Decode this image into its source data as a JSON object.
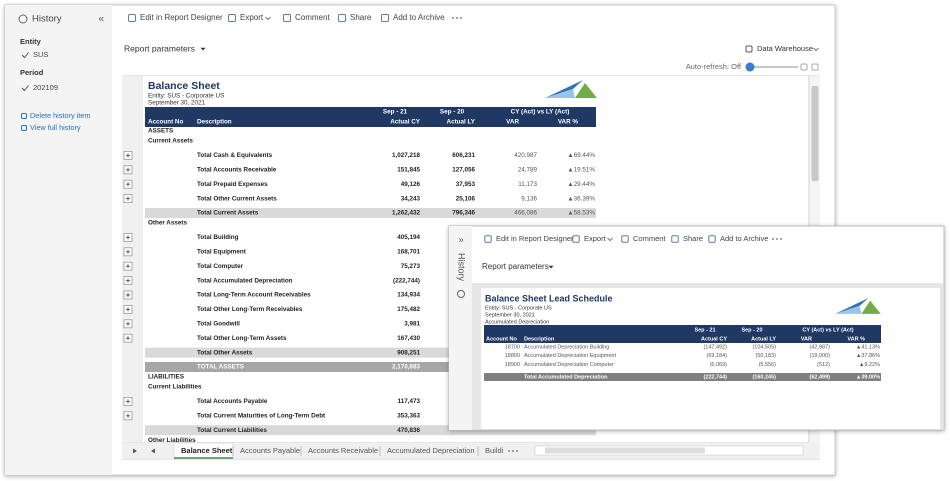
{
  "sidebar": {
    "title": "History",
    "collapse": "«",
    "entity_label": "Entity",
    "entity": "SUS",
    "period_label": "Period",
    "period": "202109",
    "actions": [
      "Delete history item",
      "View full history"
    ]
  },
  "toolbar": [
    "Edit in Report Designer",
    "Export",
    "Comment",
    "Share",
    "Add to Archive"
  ],
  "report_parameters": "Report parameters",
  "data_source": "Data Warehouse",
  "auto_refresh": "Auto-refresh: Off",
  "report": {
    "title": "Balance Sheet",
    "entity": "Entity: SUS - Corporate US",
    "date": "September 30, 2021",
    "column_groups": [
      "Sep - 21",
      "Sep - 20",
      "CY (Act) vs LY (Act)"
    ],
    "columns": [
      "Account No",
      "Description",
      "Actual CY",
      "Actual LY",
      "VAR",
      "VAR %"
    ],
    "rows": [
      {
        "heading": "ASSETS"
      },
      {
        "subheading": "Current Assets"
      },
      {
        "line": "Total Cash & Equivalents",
        "cells": [
          "1,027,218",
          "606,231",
          "420,987",
          "▲69.44%"
        ]
      },
      {
        "line": "Total Accounts Receivable",
        "cells": [
          "151,845",
          "127,056",
          "24,789",
          "▲19.51%"
        ]
      },
      {
        "line": "Total Prepaid Expenses",
        "cells": [
          "49,126",
          "37,953",
          "11,173",
          "▲29.44%"
        ]
      },
      {
        "line": "Total Other Current Assets",
        "cells": [
          "34,243",
          "25,106",
          "9,136",
          "▲36.39%"
        ]
      },
      {
        "subtotal": "Total Current Assets",
        "cells": [
          "1,262,432",
          "796,346",
          "466,086",
          "▲58.53%"
        ]
      },
      {
        "subheading": "Other Assets"
      },
      {
        "line": "Total Building",
        "cells": [
          "405,194"
        ]
      },
      {
        "line": "Total Equipment",
        "cells": [
          "168,701"
        ]
      },
      {
        "line": "Total Computer",
        "cells": [
          "75,273"
        ]
      },
      {
        "line": "Total Accumulated Depreciation",
        "cells": [
          "(222,744)"
        ]
      },
      {
        "line": "Total Long-Term Account Receivables",
        "cells": [
          "134,934"
        ]
      },
      {
        "line": "Total Other Long-Term Receivables",
        "cells": [
          "175,482"
        ]
      },
      {
        "line": "Total Goodwill",
        "cells": [
          "3,981"
        ]
      },
      {
        "line": "Total Other Long-Term Assets",
        "cells": [
          "167,430"
        ]
      },
      {
        "subtotal": "Total Other Assets",
        "cells": [
          "908,251"
        ]
      },
      {
        "total": "TOTAL ASSETS",
        "cells": [
          "2,170,683"
        ]
      },
      {
        "heading": "LIABILITIES"
      },
      {
        "subheading": "Current Liabilities"
      },
      {
        "line": "Total Accounts Payable",
        "cells": [
          "117,473"
        ]
      },
      {
        "line": "Total Current Maturities of Long-Term Debt",
        "cells": [
          "353,363"
        ]
      },
      {
        "subtotal": "Total Current Liabilities",
        "cells": [
          "470,836"
        ]
      },
      {
        "subheading": "Other Liabilities"
      }
    ]
  },
  "tabs": [
    "Balance Sheet",
    "Accounts Payable",
    "Accounts Receivable",
    "Accumulated Depreciation",
    "Buildi"
  ],
  "panel": {
    "side_label": "History",
    "expand": "»",
    "toolbar": [
      "Edit in Report Designer",
      "Export",
      "Comment",
      "Share",
      "Add to Archive"
    ],
    "report_parameters": "Report parameters",
    "report": {
      "title": "Balance Sheet Lead Schedule",
      "entity": "Entity: SUS - Corporate US",
      "date": "September 30, 2021",
      "subtitle": "Accumulated Depreciation",
      "column_groups": [
        "Sep - 21",
        "Sep - 20",
        "CY (Act) vs LY (Act)"
      ],
      "columns": [
        "Account No",
        "Description",
        "Actual CY",
        "Actual LY",
        "VAR",
        "VAR %"
      ],
      "rows": [
        {
          "account": "18700",
          "description": "Accumulated Depreciation Building",
          "cells": [
            "(147,492)",
            "(104,505)",
            "(42,987)",
            "▲41.13%"
          ]
        },
        {
          "account": "18800",
          "description": "Accumulated Depreciation Equipment",
          "cells": [
            "(69,184)",
            "(50,183)",
            "(19,000)",
            "▲37.86%"
          ]
        },
        {
          "account": "18900",
          "description": "Accumulated Depreciation Computer",
          "cells": [
            "(6,069)",
            "(5,556)",
            "(512)",
            "▲9.22%"
          ]
        }
      ],
      "total": {
        "description": "Total Accumulated Depreciation",
        "cells": [
          "(222,744)",
          "(160,245)",
          "(62,499)",
          "▲39.00%"
        ]
      }
    }
  }
}
